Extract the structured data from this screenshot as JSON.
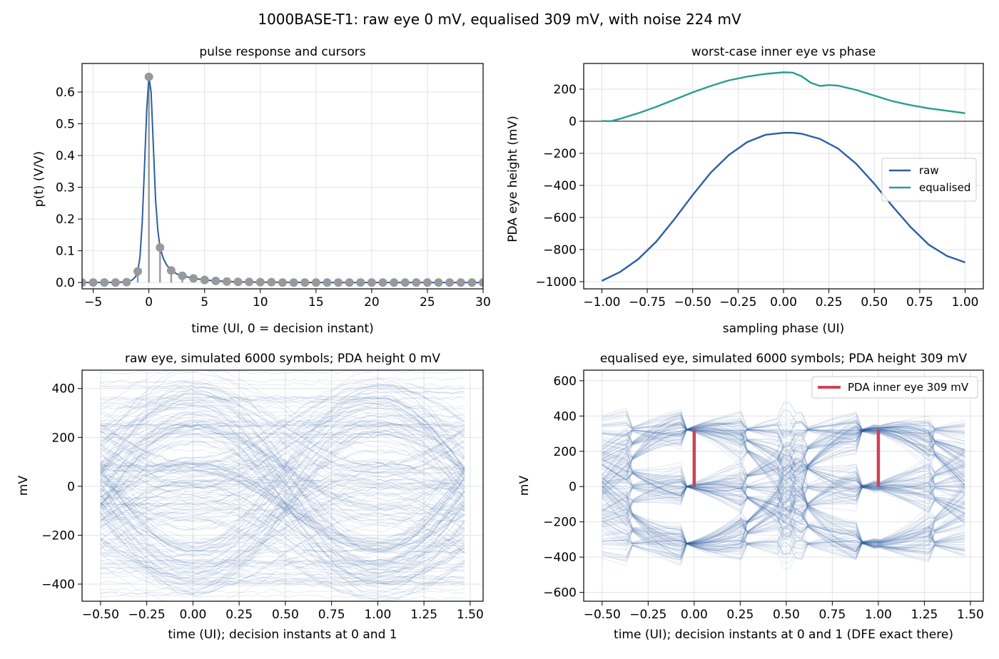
{
  "figure": {
    "suptitle": "1000BASE-T1: raw eye 0 mV, equalised 309 mV, with noise 224 mV"
  },
  "colors": {
    "raw": "#2b5fa3",
    "equalised": "#2a9d8f",
    "cursor": "#999999",
    "pda_marker": "#cc4455",
    "grid": "#e2e2e2",
    "axis": "#000000"
  },
  "chart_data": [
    {
      "id": "pulse",
      "type": "line",
      "title": "pulse response and cursors",
      "xlabel": "time (UI, 0 = decision instant)",
      "ylabel": "p(t) (V/V)",
      "xlim": [
        -6,
        30
      ],
      "ylim": [
        -0.02,
        0.69
      ],
      "xticks": [
        -5,
        0,
        5,
        10,
        15,
        20,
        25,
        30
      ],
      "xtick_labels": [
        "−5",
        "0",
        "5",
        "10",
        "15",
        "20",
        "25",
        "30"
      ],
      "yticks": [
        0.0,
        0.1,
        0.2,
        0.3,
        0.4,
        0.5,
        0.6
      ],
      "ytick_labels": [
        "0.0",
        "0.1",
        "0.2",
        "0.3",
        "0.4",
        "0.5",
        "0.6"
      ],
      "grid": true,
      "series": [
        {
          "kind": "curve",
          "x": [
            -6,
            -3,
            -2,
            -1.5,
            -1.2,
            -1,
            -0.8,
            -0.6,
            -0.4,
            -0.2,
            0,
            0.2,
            0.4,
            0.6,
            0.8,
            1,
            1.3,
            1.6,
            2,
            2.5,
            3,
            4,
            5,
            6,
            8,
            10,
            15,
            20,
            25,
            30
          ],
          "y": [
            0,
            0.0005,
            0.002,
            0.008,
            0.018,
            0.035,
            0.08,
            0.19,
            0.36,
            0.54,
            0.648,
            0.6,
            0.43,
            0.26,
            0.165,
            0.11,
            0.075,
            0.055,
            0.038,
            0.027,
            0.021,
            0.013,
            0.008,
            0.005,
            0.002,
            0.001,
            0,
            0,
            0,
            0
          ]
        },
        {
          "kind": "stem",
          "x": [
            -6,
            -5,
            -4,
            -3,
            -2,
            -1,
            0,
            1,
            2,
            3,
            4,
            5,
            6,
            7,
            8,
            9,
            10,
            11,
            12,
            13,
            14,
            15,
            16,
            17,
            18,
            19,
            20,
            21,
            22,
            23,
            24,
            25,
            26,
            27,
            28,
            29,
            30
          ],
          "y": [
            0,
            0,
            0,
            0,
            0.001,
            0.035,
            0.648,
            0.11,
            0.038,
            0.021,
            0.013,
            0.008,
            0.005,
            0.003,
            0.002,
            0.002,
            0.001,
            0.001,
            0,
            0,
            0,
            0,
            0,
            0,
            0,
            0,
            0,
            0,
            0,
            0,
            0,
            0,
            0,
            0,
            0,
            0,
            0
          ]
        }
      ]
    },
    {
      "id": "phase",
      "type": "line",
      "title": "worst-case inner eye vs phase",
      "xlabel": "sampling phase (UI)",
      "ylabel": "PDA eye height (mV)",
      "xlim": [
        -1.1,
        1.1
      ],
      "ylim": [
        -1045,
        360
      ],
      "xticks": [
        -1.0,
        -0.75,
        -0.5,
        -0.25,
        0.0,
        0.25,
        0.5,
        0.75,
        1.0
      ],
      "xtick_labels": [
        "−1.00",
        "−0.75",
        "−0.50",
        "−0.25",
        "0.00",
        "0.25",
        "0.50",
        "0.75",
        "1.00"
      ],
      "yticks": [
        -1000,
        -800,
        -600,
        -400,
        -200,
        0,
        200
      ],
      "ytick_labels": [
        "−1000",
        "−800",
        "−600",
        "−400",
        "−200",
        "0",
        "200"
      ],
      "grid": true,
      "zero_line": true,
      "legend": {
        "placement": "center-right",
        "entries": [
          "raw",
          "equalised"
        ]
      },
      "series": [
        {
          "name": "raw",
          "x": [
            -1.0,
            -0.9,
            -0.8,
            -0.7,
            -0.6,
            -0.5,
            -0.4,
            -0.3,
            -0.2,
            -0.1,
            0.0,
            0.05,
            0.1,
            0.2,
            0.3,
            0.4,
            0.5,
            0.6,
            0.7,
            0.8,
            0.9,
            1.0
          ],
          "y": [
            -995,
            -940,
            -860,
            -750,
            -610,
            -460,
            -320,
            -210,
            -130,
            -85,
            -72,
            -72,
            -78,
            -110,
            -170,
            -265,
            -390,
            -530,
            -660,
            -770,
            -840,
            -880
          ]
        },
        {
          "name": "equalised",
          "x": [
            -1.0,
            -0.95,
            -0.9,
            -0.8,
            -0.7,
            -0.6,
            -0.5,
            -0.4,
            -0.3,
            -0.2,
            -0.1,
            0.0,
            0.05,
            0.1,
            0.15,
            0.2,
            0.25,
            0.3,
            0.4,
            0.5,
            0.6,
            0.7,
            0.8,
            0.9,
            1.0
          ],
          "y": [
            2,
            0,
            15,
            50,
            90,
            135,
            180,
            220,
            255,
            278,
            295,
            305,
            303,
            280,
            240,
            220,
            225,
            222,
            195,
            160,
            125,
            100,
            80,
            65,
            50
          ]
        }
      ]
    },
    {
      "id": "raw_eye",
      "type": "line",
      "title": "raw eye, simulated 6000 symbols; PDA height 0 mV",
      "xlabel": "time (UI); decision instants at 0 and 1",
      "ylabel": "mV",
      "xlim": [
        -0.6,
        1.57
      ],
      "ylim": [
        -470,
        475
      ],
      "xticks": [
        -0.5,
        -0.25,
        0.0,
        0.25,
        0.5,
        0.75,
        1.0,
        1.25,
        1.5
      ],
      "xtick_labels": [
        "−0.50",
        "−0.25",
        "0.00",
        "0.25",
        "0.50",
        "0.75",
        "1.00",
        "1.25",
        "1.50"
      ],
      "yticks": [
        -400,
        -200,
        0,
        200,
        400
      ],
      "ytick_labels": [
        "−400",
        "−200",
        "0",
        "200",
        "400"
      ],
      "grid": true,
      "simulated_symbols": 6000,
      "trace_x_range": [
        -0.5,
        1.47
      ],
      "symbol_levels_mV": [
        -324,
        0,
        324
      ],
      "pda_height_mV": 0
    },
    {
      "id": "eq_eye",
      "type": "line",
      "title": "equalised eye, simulated 6000 symbols; PDA height 309 mV",
      "xlabel": "time (UI); decision instants at 0 and 1 (DFE exact there)",
      "ylabel": "mV",
      "xlim": [
        -0.6,
        1.57
      ],
      "ylim": [
        -650,
        660
      ],
      "xticks": [
        -0.5,
        -0.25,
        0.0,
        0.25,
        0.5,
        0.75,
        1.0,
        1.25,
        1.5
      ],
      "xtick_labels": [
        "−0.50",
        "−0.25",
        "0.00",
        "0.25",
        "0.50",
        "0.75",
        "1.00",
        "1.25",
        "1.50"
      ],
      "yticks": [
        -600,
        -400,
        -200,
        0,
        200,
        400,
        600
      ],
      "ytick_labels": [
        "−600",
        "−400",
        "−200",
        "0",
        "200",
        "400",
        "600"
      ],
      "grid": true,
      "simulated_symbols": 6000,
      "trace_x_range": [
        -0.5,
        1.47
      ],
      "symbol_levels_mV": [
        -324,
        0,
        324
      ],
      "legend": {
        "placement": "top-right",
        "entries": [
          "PDA inner eye 309 mV"
        ]
      },
      "pda_markers": [
        {
          "x": 0.0,
          "y": [
            0,
            324
          ]
        },
        {
          "x": 1.0,
          "y": [
            0,
            324
          ]
        }
      ]
    }
  ]
}
